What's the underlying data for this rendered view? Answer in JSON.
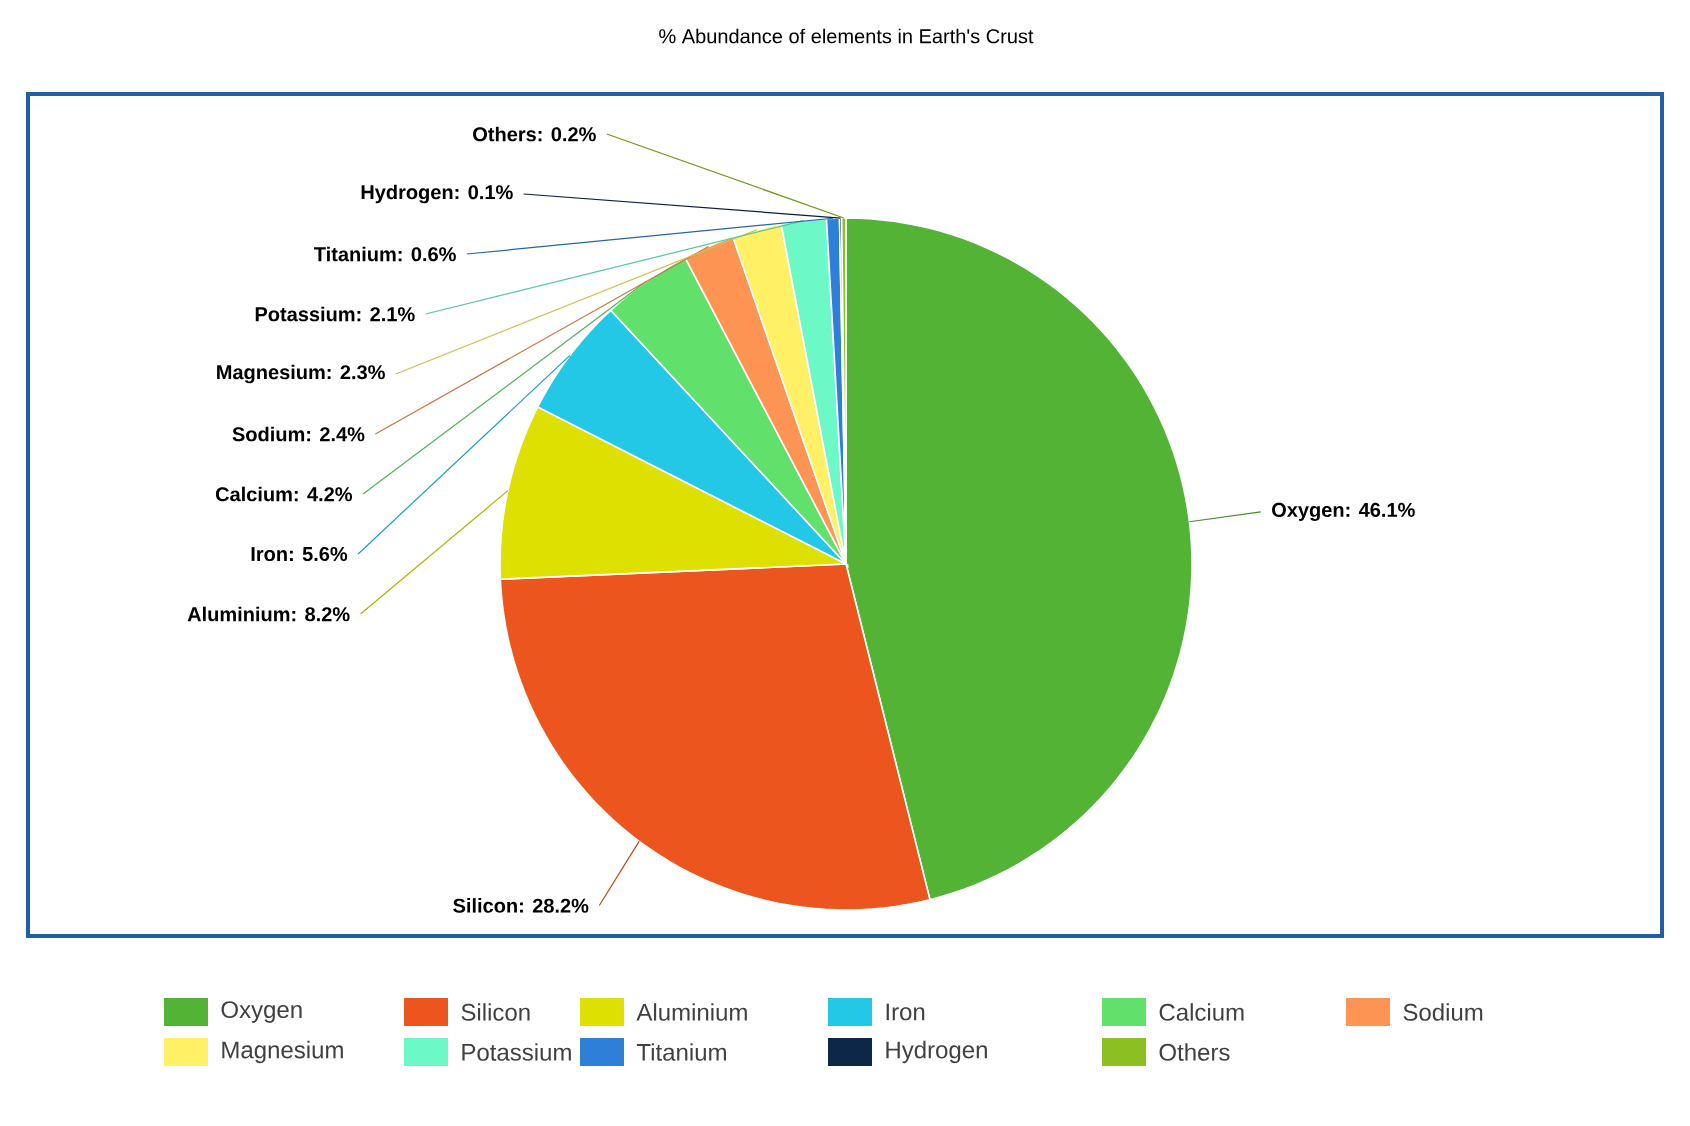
{
  "chart_data": {
    "type": "pie",
    "title": "% Abundance of elements in Earth's Crust",
    "categories": [
      "Oxygen",
      "Silicon",
      "Aluminium",
      "Iron",
      "Calcium",
      "Sodium",
      "Magnesium",
      "Potassium",
      "Titanium",
      "Hydrogen",
      "Others"
    ],
    "values": [
      46.1,
      28.2,
      8.2,
      5.6,
      4.2,
      2.4,
      2.3,
      2.1,
      0.6,
      0.1,
      0.2
    ],
    "colors": [
      "#52b335",
      "#ec561e",
      "#dde000",
      "#22c8e5",
      "#62e06c",
      "#fd9453",
      "#fff066",
      "#6cf9c7",
      "#2e7fd8",
      "#0d2748",
      "#8bbf22"
    ],
    "value_labels": [
      "Oxygen: 46.1%",
      "Silicon: 28.2%",
      "Aluminium: 8.2%",
      "Iron: 5.6%",
      "Calcium: 4.2%",
      "Sodium: 2.4%",
      "Magnesium: 2.3%",
      "Potassium: 2.1%",
      "Titanium: 0.6%",
      "Hydrogen: 0.1%",
      "Others: 0.2%"
    ],
    "legend": "bottom"
  }
}
